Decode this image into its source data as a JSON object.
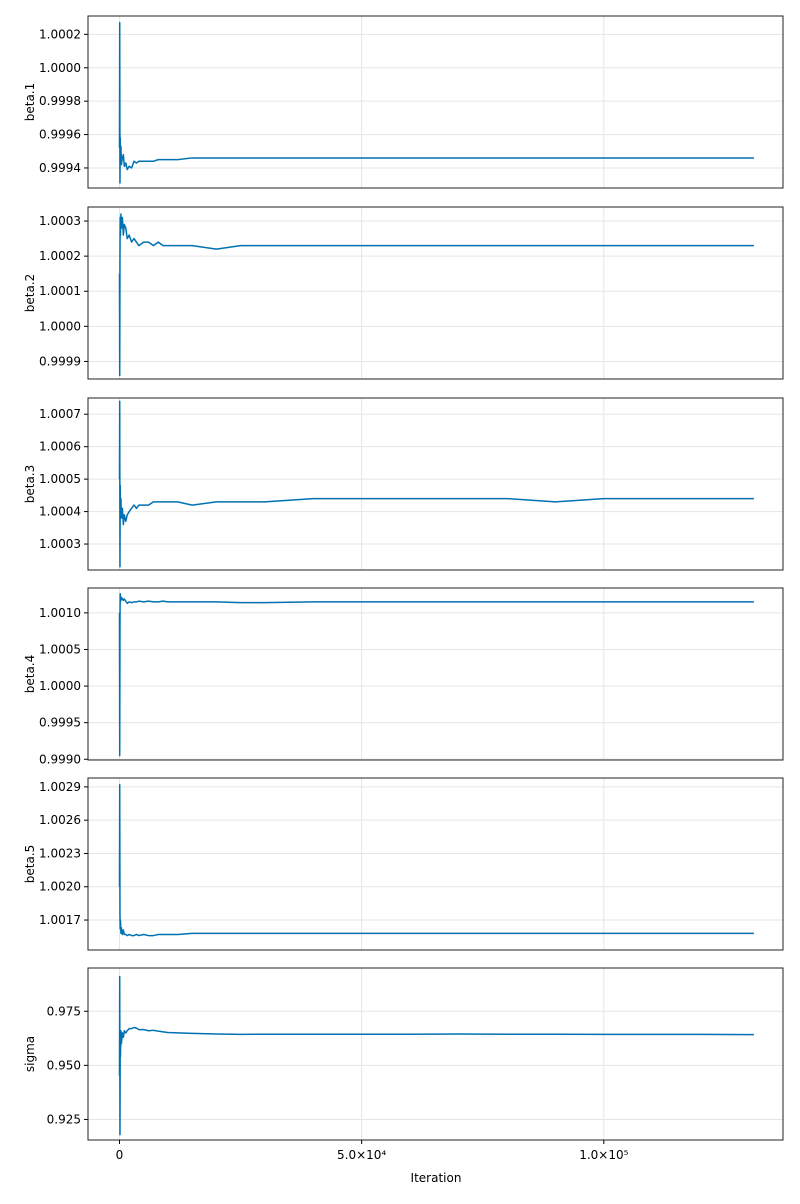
{
  "chart_data": {
    "type": "line",
    "xlabel": "Iteration",
    "xlim": [
      -6500,
      137000
    ],
    "xticks": [
      {
        "value": 0,
        "label": "0"
      },
      {
        "value": 50000,
        "label": "5.0×10⁴"
      },
      {
        "value": 100000,
        "label": "1.0×10⁵"
      }
    ],
    "line_color": "#0072b2",
    "grid": true,
    "panels": [
      {
        "ylabel": "beta.1",
        "ylim": [
          0.99928,
          1.00031
        ],
        "yticks": [
          "0.9994",
          "0.9996",
          "0.9998",
          "1.0000",
          "1.0002"
        ],
        "series": {
          "x": [
            0,
            50,
            100,
            150,
            200,
            300,
            400,
            600,
            800,
            1000,
            1300,
            1600,
            2000,
            2500,
            3000,
            3500,
            4000,
            5000,
            6000,
            7000,
            8000,
            9000,
            10000,
            12000,
            15000,
            20000,
            25000,
            30000,
            40000,
            50000,
            60000,
            70000,
            80000,
            90000,
            100000,
            110000,
            120000,
            131000
          ],
          "y": [
            0.99952,
            1.00027,
            0.99931,
            0.99958,
            0.99945,
            0.99953,
            0.99942,
            0.99946,
            0.99948,
            0.99941,
            0.99943,
            0.99939,
            0.99941,
            0.9994,
            0.99944,
            0.99943,
            0.99944,
            0.99944,
            0.99944,
            0.99944,
            0.99945,
            0.99945,
            0.99945,
            0.99945,
            0.99946,
            0.99946,
            0.99946,
            0.99946,
            0.99946,
            0.99946,
            0.99946,
            0.99946,
            0.99946,
            0.99946,
            0.99946,
            0.99946,
            0.99946,
            0.99946
          ]
        }
      },
      {
        "ylabel": "beta.2",
        "ylim": [
          0.99985,
          1.00034
        ],
        "yticks": [
          "0.9999",
          "1.0000",
          "1.0001",
          "1.0002",
          "1.0003"
        ],
        "series": {
          "x": [
            0,
            50,
            100,
            150,
            200,
            300,
            400,
            600,
            800,
            1000,
            1300,
            1600,
            2000,
            2500,
            3000,
            3500,
            4000,
            5000,
            6000,
            7000,
            8000,
            9000,
            10000,
            12000,
            15000,
            20000,
            25000,
            30000,
            40000,
            50000,
            60000,
            70000,
            80000,
            90000,
            100000,
            110000,
            120000,
            131000
          ],
          "y": [
            1.00015,
            0.99986,
            1.0002,
            1.00031,
            1.00026,
            1.00032,
            1.00028,
            1.00031,
            1.00026,
            1.00029,
            1.00028,
            1.00025,
            1.00026,
            1.00024,
            1.00025,
            1.00024,
            1.00023,
            1.00024,
            1.00024,
            1.00023,
            1.00024,
            1.00023,
            1.00023,
            1.00023,
            1.00023,
            1.00022,
            1.00023,
            1.00023,
            1.00023,
            1.00023,
            1.00023,
            1.00023,
            1.00023,
            1.00023,
            1.00023,
            1.00023,
            1.00023,
            1.00023
          ]
        }
      },
      {
        "ylabel": "beta.3",
        "ylim": [
          1.00022,
          1.00075
        ],
        "yticks": [
          "1.0003",
          "1.0004",
          "1.0005",
          "1.0006",
          "1.0007"
        ],
        "series": {
          "x": [
            0,
            50,
            100,
            150,
            200,
            300,
            400,
            600,
            800,
            1000,
            1300,
            1600,
            2000,
            2500,
            3000,
            3500,
            4000,
            5000,
            6000,
            7000,
            8000,
            9000,
            10000,
            12000,
            15000,
            20000,
            25000,
            30000,
            40000,
            50000,
            60000,
            70000,
            80000,
            90000,
            100000,
            110000,
            120000,
            131000
          ],
          "y": [
            1.0005,
            1.00074,
            1.00023,
            1.00048,
            1.0004,
            1.00044,
            1.00038,
            1.00041,
            1.00036,
            1.00039,
            1.00037,
            1.00039,
            1.0004,
            1.00041,
            1.00042,
            1.00041,
            1.00042,
            1.00042,
            1.00042,
            1.00043,
            1.00043,
            1.00043,
            1.00043,
            1.00043,
            1.00042,
            1.00043,
            1.00043,
            1.00043,
            1.00044,
            1.00044,
            1.00044,
            1.00044,
            1.00044,
            1.00043,
            1.00044,
            1.00044,
            1.00044,
            1.00044
          ]
        }
      },
      {
        "ylabel": "beta.4",
        "ylim": [
          0.99899,
          1.00134
        ],
        "yticks": [
          "0.9990",
          "0.9995",
          "1.0000",
          "1.0005",
          "1.0010"
        ],
        "series": {
          "x": [
            0,
            50,
            100,
            150,
            200,
            300,
            400,
            600,
            800,
            1000,
            1300,
            1600,
            2000,
            2500,
            3000,
            3500,
            4000,
            5000,
            6000,
            7000,
            8000,
            9000,
            10000,
            12000,
            15000,
            20000,
            25000,
            30000,
            40000,
            50000,
            60000,
            70000,
            80000,
            90000,
            100000,
            110000,
            120000,
            131000
          ],
          "y": [
            1.001,
            0.99905,
            1.0009,
            1.00126,
            1.00115,
            1.00122,
            1.00118,
            1.0012,
            1.00117,
            1.00119,
            1.00116,
            1.00113,
            1.00115,
            1.00114,
            1.00115,
            1.00115,
            1.00116,
            1.00115,
            1.00116,
            1.00115,
            1.00115,
            1.00116,
            1.00115,
            1.00115,
            1.00115,
            1.00115,
            1.00114,
            1.00114,
            1.00115,
            1.00115,
            1.00115,
            1.00115,
            1.00115,
            1.00115,
            1.00115,
            1.00115,
            1.00115,
            1.00115
          ]
        }
      },
      {
        "ylabel": "beta.5",
        "ylim": [
          1.00143,
          1.00298
        ],
        "yticks": [
          "1.0017",
          "1.0020",
          "1.0023",
          "1.0026",
          "1.0029"
        ],
        "series": {
          "x": [
            0,
            50,
            100,
            150,
            200,
            300,
            400,
            600,
            800,
            1000,
            1300,
            1600,
            2000,
            2500,
            3000,
            3500,
            4000,
            5000,
            6000,
            7000,
            8000,
            9000,
            10000,
            12000,
            15000,
            20000,
            25000,
            30000,
            40000,
            50000,
            60000,
            70000,
            80000,
            90000,
            100000,
            110000,
            120000,
            131000
          ],
          "y": [
            1.002,
            1.00292,
            1.00175,
            1.00162,
            1.0017,
            1.00158,
            1.00163,
            1.00157,
            1.00161,
            1.00157,
            1.00157,
            1.00156,
            1.00157,
            1.00156,
            1.00156,
            1.00157,
            1.00156,
            1.00157,
            1.00156,
            1.00156,
            1.00157,
            1.00157,
            1.00157,
            1.00157,
            1.00158,
            1.00158,
            1.00158,
            1.00158,
            1.00158,
            1.00158,
            1.00158,
            1.00158,
            1.00158,
            1.00158,
            1.00158,
            1.00158,
            1.00158,
            1.00158
          ]
        }
      },
      {
        "ylabel": "sigma",
        "ylim": [
          0.9155,
          0.995
        ],
        "yticks": [
          "0.925",
          "0.950",
          "0.975"
        ],
        "series": {
          "x": [
            0,
            50,
            100,
            150,
            200,
            300,
            400,
            600,
            800,
            1000,
            1300,
            1600,
            2000,
            2500,
            3000,
            3500,
            4000,
            5000,
            6000,
            7000,
            8000,
            9000,
            10000,
            12000,
            15000,
            20000,
            25000,
            30000,
            40000,
            50000,
            60000,
            70000,
            80000,
            90000,
            100000,
            110000,
            120000,
            131000
          ],
          "y": [
            0.945,
            0.991,
            0.918,
            0.96,
            0.954,
            0.966,
            0.96,
            0.965,
            0.963,
            0.966,
            0.965,
            0.966,
            0.967,
            0.967,
            0.9675,
            0.9672,
            0.9665,
            0.9665,
            0.966,
            0.9662,
            0.9658,
            0.9655,
            0.9652,
            0.965,
            0.9648,
            0.9645,
            0.9643,
            0.9644,
            0.9644,
            0.9644,
            0.9644,
            0.9645,
            0.9644,
            0.9644,
            0.9643,
            0.9643,
            0.9643,
            0.9642
          ]
        }
      }
    ]
  }
}
